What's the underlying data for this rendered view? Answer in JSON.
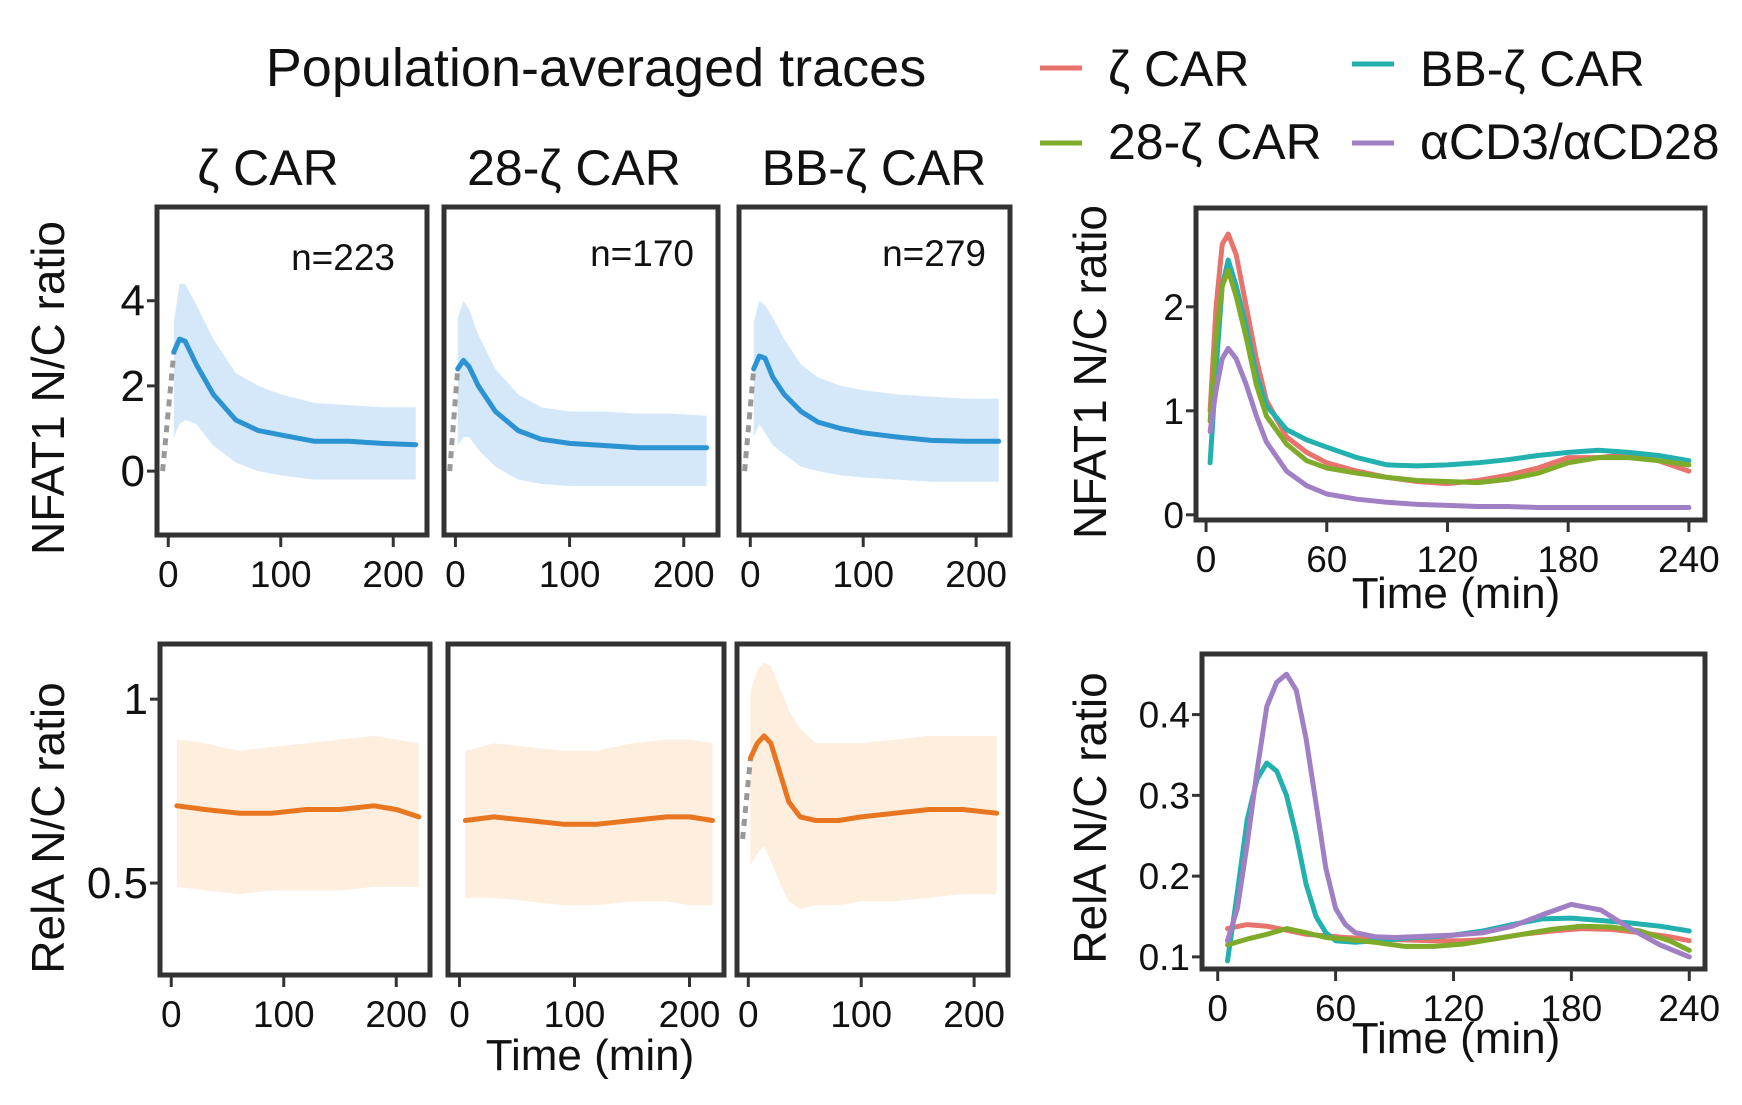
{
  "figure_title": "Population-averaged traces",
  "colors": {
    "nfat_mean": "#2b93d1",
    "nfat_band": "#d5e8fa",
    "rela_mean": "#e8751f",
    "rela_band": "#fdeede",
    "pre_dashed": "#999999",
    "frame": "#333333"
  },
  "legend": {
    "items": [
      {
        "label": "ζ CAR",
        "color": "#e8736c"
      },
      {
        "label": "BB-ζ CAR",
        "color": "#23b1b0"
      },
      {
        "label": "28-ζ CAR",
        "color": "#7fab2a"
      },
      {
        "label": "αCD3/αCD28",
        "color": "#a07fc4"
      }
    ]
  },
  "chart_data": [
    {
      "type": "line",
      "id": "nfat-zeta",
      "title": "ζ CAR",
      "annotation": "n=223",
      "ylabel": "NFAT1 N/C ratio",
      "xlim": [
        -10,
        230
      ],
      "ylim": [
        -1.5,
        6.2
      ],
      "xticks": [
        0,
        100,
        200
      ],
      "yticks": [
        0,
        2,
        4
      ],
      "pre": {
        "x": [
          -5,
          5
        ],
        "y": [
          0,
          2.8
        ]
      },
      "series": [
        {
          "name": "mean",
          "x": [
            5,
            10,
            15,
            25,
            40,
            60,
            80,
            100,
            130,
            160,
            190,
            220
          ],
          "y": [
            2.8,
            3.1,
            3.05,
            2.5,
            1.8,
            1.2,
            0.95,
            0.85,
            0.7,
            0.7,
            0.65,
            0.62
          ]
        }
      ],
      "band": {
        "x": [
          5,
          10,
          15,
          25,
          40,
          60,
          80,
          100,
          130,
          160,
          190,
          220
        ],
        "lower": [
          0.8,
          1.1,
          1.2,
          1.1,
          0.6,
          0.2,
          0,
          -0.1,
          -0.2,
          -0.2,
          -0.2,
          -0.2
        ],
        "upper": [
          3.5,
          4.4,
          4.4,
          3.9,
          3.1,
          2.3,
          2.0,
          1.8,
          1.6,
          1.55,
          1.5,
          1.5
        ]
      }
    },
    {
      "type": "line",
      "id": "nfat-28z",
      "title": "28-ζ CAR",
      "annotation": "n=170",
      "xlim": [
        -10,
        230
      ],
      "ylim": [
        -1.5,
        6.2
      ],
      "xticks": [
        0,
        100,
        200
      ],
      "pre": {
        "x": [
          -5,
          2
        ],
        "y": [
          0,
          2.4
        ]
      },
      "series": [
        {
          "name": "mean",
          "x": [
            2,
            7,
            12,
            20,
            35,
            55,
            75,
            100,
            130,
            160,
            190,
            220
          ],
          "y": [
            2.4,
            2.6,
            2.45,
            2.0,
            1.4,
            0.95,
            0.75,
            0.65,
            0.6,
            0.55,
            0.55,
            0.55
          ]
        }
      ],
      "band": {
        "x": [
          2,
          7,
          12,
          20,
          35,
          55,
          75,
          100,
          130,
          160,
          190,
          220
        ],
        "lower": [
          0.6,
          0.8,
          0.8,
          0.5,
          0.1,
          -0.2,
          -0.3,
          -0.35,
          -0.35,
          -0.35,
          -0.35,
          -0.35
        ],
        "upper": [
          3.6,
          4.0,
          3.8,
          3.2,
          2.4,
          1.8,
          1.5,
          1.4,
          1.4,
          1.35,
          1.35,
          1.3
        ]
      }
    },
    {
      "type": "line",
      "id": "nfat-bbz",
      "title": "BB-ζ CAR",
      "annotation": "n=279",
      "xlim": [
        -10,
        230
      ],
      "ylim": [
        -1.5,
        6.2
      ],
      "xticks": [
        0,
        100,
        200
      ],
      "pre": {
        "x": [
          -5,
          3
        ],
        "y": [
          0,
          2.4
        ]
      },
      "series": [
        {
          "name": "mean",
          "x": [
            3,
            8,
            13,
            20,
            30,
            45,
            60,
            80,
            100,
            130,
            160,
            190,
            220
          ],
          "y": [
            2.4,
            2.7,
            2.65,
            2.2,
            1.8,
            1.4,
            1.15,
            1.0,
            0.9,
            0.8,
            0.72,
            0.7,
            0.7
          ]
        }
      ],
      "band": {
        "x": [
          3,
          8,
          13,
          20,
          30,
          45,
          60,
          80,
          100,
          130,
          160,
          190,
          220
        ],
        "lower": [
          0.8,
          1.1,
          0.9,
          0.6,
          0.4,
          0.1,
          0,
          -0.1,
          -0.15,
          -0.2,
          -0.25,
          -0.25,
          -0.25
        ],
        "upper": [
          3.5,
          4.0,
          3.9,
          3.6,
          3.1,
          2.5,
          2.2,
          2.0,
          1.9,
          1.8,
          1.75,
          1.7,
          1.7
        ]
      }
    },
    {
      "type": "line",
      "id": "nfat-avg",
      "ylabel": "NFAT1 N/C ratio",
      "xlabel": "Time (min)",
      "xlim": [
        -5,
        248
      ],
      "ylim": [
        -0.05,
        2.95
      ],
      "xticks": [
        0,
        60,
        120,
        180,
        240
      ],
      "yticks": [
        0,
        1,
        2
      ],
      "series": [
        {
          "name": "ζ CAR",
          "color": "#e8736c",
          "x": [
            2,
            5,
            8,
            11,
            15,
            20,
            25,
            30,
            40,
            50,
            60,
            75,
            90,
            105,
            120,
            135,
            150,
            165,
            180,
            195,
            210,
            225,
            240
          ],
          "y": [
            1.0,
            2.0,
            2.6,
            2.7,
            2.5,
            2.0,
            1.5,
            1.1,
            0.75,
            0.6,
            0.5,
            0.42,
            0.36,
            0.32,
            0.3,
            0.33,
            0.38,
            0.45,
            0.55,
            0.55,
            0.58,
            0.52,
            0.42
          ]
        },
        {
          "name": "BB-ζ CAR",
          "color": "#23b1b0",
          "x": [
            2,
            5,
            8,
            11,
            15,
            20,
            25,
            30,
            40,
            50,
            60,
            75,
            90,
            105,
            120,
            135,
            150,
            165,
            180,
            195,
            210,
            225,
            240
          ],
          "y": [
            0.5,
            1.4,
            2.2,
            2.45,
            2.2,
            1.8,
            1.35,
            1.05,
            0.82,
            0.72,
            0.65,
            0.55,
            0.48,
            0.47,
            0.48,
            0.5,
            0.53,
            0.57,
            0.6,
            0.62,
            0.6,
            0.57,
            0.52
          ]
        },
        {
          "name": "28-ζ CAR",
          "color": "#7fab2a",
          "x": [
            2,
            5,
            8,
            11,
            15,
            20,
            25,
            30,
            40,
            50,
            60,
            75,
            90,
            105,
            120,
            135,
            150,
            165,
            180,
            195,
            210,
            225,
            240
          ],
          "y": [
            0.9,
            1.7,
            2.2,
            2.35,
            2.1,
            1.7,
            1.25,
            0.95,
            0.68,
            0.52,
            0.45,
            0.4,
            0.36,
            0.33,
            0.32,
            0.31,
            0.34,
            0.4,
            0.5,
            0.55,
            0.55,
            0.52,
            0.48
          ]
        },
        {
          "name": "αCD3/αCD28",
          "color": "#a07fc4",
          "x": [
            2,
            5,
            8,
            11,
            15,
            20,
            25,
            30,
            40,
            50,
            60,
            75,
            90,
            105,
            120,
            135,
            150,
            165,
            180,
            195,
            210,
            225,
            240
          ],
          "y": [
            0.8,
            1.2,
            1.5,
            1.6,
            1.5,
            1.25,
            0.95,
            0.7,
            0.42,
            0.28,
            0.2,
            0.15,
            0.12,
            0.1,
            0.09,
            0.08,
            0.08,
            0.07,
            0.07,
            0.07,
            0.07,
            0.07,
            0.07
          ]
        }
      ]
    },
    {
      "type": "line",
      "id": "rela-zeta",
      "ylabel": "RelA N/C ratio",
      "xlim": [
        -10,
        230
      ],
      "ylim": [
        0.25,
        1.15
      ],
      "xticks": [
        0,
        100,
        200
      ],
      "yticks": [
        0.5,
        1
      ],
      "series": [
        {
          "name": "mean",
          "x": [
            5,
            30,
            60,
            90,
            120,
            150,
            180,
            200,
            220
          ],
          "y": [
            0.71,
            0.7,
            0.69,
            0.69,
            0.7,
            0.7,
            0.71,
            0.7,
            0.68
          ]
        }
      ],
      "band": {
        "x": [
          5,
          30,
          60,
          90,
          120,
          150,
          180,
          200,
          220
        ],
        "lower": [
          0.49,
          0.48,
          0.47,
          0.48,
          0.48,
          0.48,
          0.49,
          0.49,
          0.49
        ],
        "upper": [
          0.89,
          0.88,
          0.86,
          0.87,
          0.88,
          0.89,
          0.9,
          0.89,
          0.88
        ]
      }
    },
    {
      "type": "line",
      "id": "rela-28z",
      "xlim": [
        -10,
        230
      ],
      "ylim": [
        0.25,
        1.15
      ],
      "xticks": [
        0,
        100,
        200
      ],
      "series": [
        {
          "name": "mean",
          "x": [
            5,
            30,
            60,
            90,
            120,
            150,
            180,
            200,
            220
          ],
          "y": [
            0.67,
            0.68,
            0.67,
            0.66,
            0.66,
            0.67,
            0.68,
            0.68,
            0.67
          ]
        }
      ],
      "band": {
        "x": [
          5,
          30,
          60,
          90,
          120,
          150,
          180,
          200,
          220
        ],
        "lower": [
          0.46,
          0.46,
          0.45,
          0.44,
          0.44,
          0.45,
          0.45,
          0.44,
          0.44
        ],
        "upper": [
          0.86,
          0.88,
          0.87,
          0.86,
          0.86,
          0.88,
          0.89,
          0.89,
          0.88
        ]
      }
    },
    {
      "type": "line",
      "id": "rela-bbz",
      "xlim": [
        -10,
        230
      ],
      "ylim": [
        0.25,
        1.15
      ],
      "xticks": [
        0,
        100,
        200
      ],
      "pre": {
        "x": [
          -5,
          2
        ],
        "y": [
          0.62,
          0.84
        ]
      },
      "series": [
        {
          "name": "mean",
          "x": [
            2,
            8,
            14,
            20,
            28,
            36,
            46,
            60,
            80,
            100,
            130,
            160,
            190,
            220
          ],
          "y": [
            0.84,
            0.88,
            0.9,
            0.88,
            0.8,
            0.72,
            0.68,
            0.67,
            0.67,
            0.68,
            0.69,
            0.7,
            0.7,
            0.69
          ]
        }
      ],
      "band": {
        "x": [
          2,
          8,
          14,
          20,
          28,
          36,
          46,
          60,
          80,
          100,
          130,
          160,
          190,
          220
        ],
        "lower": [
          0.55,
          0.58,
          0.6,
          0.56,
          0.5,
          0.45,
          0.43,
          0.44,
          0.44,
          0.45,
          0.45,
          0.46,
          0.47,
          0.47
        ],
        "upper": [
          1.02,
          1.08,
          1.1,
          1.09,
          1.03,
          0.97,
          0.92,
          0.88,
          0.88,
          0.88,
          0.89,
          0.9,
          0.9,
          0.9
        ]
      }
    },
    {
      "type": "line",
      "id": "rela-avg",
      "ylabel": "RelA N/C ratio",
      "xlabel": "Time (min)",
      "xlim": [
        -8,
        248
      ],
      "ylim": [
        0.085,
        0.475
      ],
      "xticks": [
        0,
        60,
        120,
        180,
        240
      ],
      "yticks": [
        0.1,
        0.2,
        0.3,
        0.4
      ],
      "series": [
        {
          "name": "ζ CAR",
          "color": "#e8736c",
          "x": [
            5,
            15,
            25,
            35,
            45,
            55,
            65,
            80,
            95,
            110,
            125,
            140,
            155,
            170,
            185,
            200,
            215,
            230,
            240
          ],
          "y": [
            0.135,
            0.14,
            0.138,
            0.133,
            0.128,
            0.126,
            0.124,
            0.122,
            0.121,
            0.12,
            0.12,
            0.122,
            0.128,
            0.132,
            0.135,
            0.134,
            0.13,
            0.125,
            0.12
          ]
        },
        {
          "name": "BB-ζ CAR",
          "color": "#23b1b0",
          "x": [
            5,
            10,
            15,
            20,
            25,
            30,
            35,
            40,
            45,
            50,
            55,
            60,
            70,
            80,
            90,
            100,
            110,
            120,
            135,
            150,
            165,
            180,
            195,
            210,
            225,
            240
          ],
          "y": [
            0.095,
            0.18,
            0.27,
            0.32,
            0.34,
            0.33,
            0.3,
            0.25,
            0.19,
            0.15,
            0.13,
            0.12,
            0.118,
            0.12,
            0.122,
            0.124,
            0.125,
            0.127,
            0.132,
            0.14,
            0.147,
            0.148,
            0.145,
            0.142,
            0.138,
            0.132
          ]
        },
        {
          "name": "28-ζ CAR",
          "color": "#7fab2a",
          "x": [
            5,
            15,
            25,
            35,
            45,
            55,
            65,
            80,
            95,
            110,
            125,
            140,
            155,
            170,
            185,
            200,
            215,
            230,
            240
          ],
          "y": [
            0.115,
            0.122,
            0.128,
            0.135,
            0.13,
            0.124,
            0.122,
            0.118,
            0.113,
            0.113,
            0.116,
            0.122,
            0.128,
            0.134,
            0.138,
            0.137,
            0.132,
            0.12,
            0.108
          ]
        },
        {
          "name": "αCD3/αCD28",
          "color": "#a07fc4",
          "x": [
            5,
            10,
            15,
            20,
            25,
            30,
            35,
            40,
            45,
            50,
            55,
            60,
            65,
            70,
            80,
            90,
            100,
            110,
            120,
            135,
            150,
            165,
            180,
            195,
            210,
            225,
            240
          ],
          "y": [
            0.12,
            0.16,
            0.24,
            0.33,
            0.41,
            0.44,
            0.45,
            0.43,
            0.37,
            0.29,
            0.21,
            0.16,
            0.14,
            0.13,
            0.125,
            0.124,
            0.125,
            0.126,
            0.127,
            0.13,
            0.138,
            0.152,
            0.165,
            0.158,
            0.135,
            0.115,
            0.1
          ]
        }
      ]
    }
  ],
  "x_common_label": "Time (min)"
}
